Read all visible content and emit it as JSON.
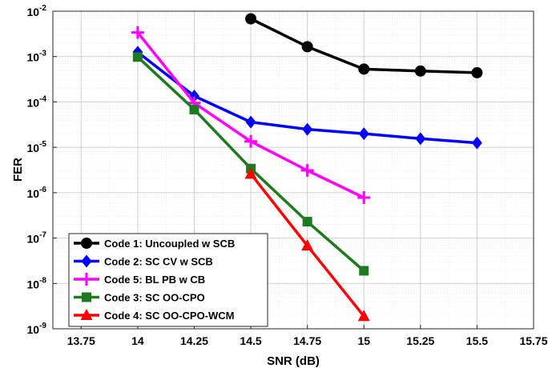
{
  "chart_data": {
    "type": "line",
    "xlabel": "SNR (dB)",
    "ylabel": "FER",
    "xlim": [
      13.625,
      15.75
    ],
    "ylim_exponent": [
      -9,
      -2
    ],
    "yscale": "log",
    "grid": true,
    "minor_grid": true,
    "legend_position": "bottom-left",
    "x_ticks": [
      13.75,
      14,
      14.25,
      14.5,
      14.75,
      15,
      15.25,
      15.5,
      15.75
    ],
    "x_tick_labels": [
      "13.75",
      "14",
      "14.25",
      "14.5",
      "14.75",
      "15",
      "15.25",
      "15.5",
      "15.75"
    ],
    "y_ticks": [
      -9,
      -8,
      -7,
      -6,
      -5,
      -4,
      -3,
      -2
    ],
    "y_tick_base": "10",
    "y_tick_exponents": [
      "-9",
      "-8",
      "-7",
      "-6",
      "-5",
      "-4",
      "-3",
      "-2"
    ],
    "series": [
      {
        "name": "Code 1: Uncoupled w SCB",
        "color": "#000000",
        "marker": "circle",
        "x": [
          14.5,
          14.75,
          15,
          15.25,
          15.5
        ],
        "y": [
          0.0068,
          0.00165,
          0.00053,
          0.00048,
          0.00044
        ]
      },
      {
        "name": "Code 2: SC CV w SCB",
        "color": "#0000ff",
        "marker": "diamond",
        "x": [
          14,
          14.25,
          14.5,
          14.75,
          15,
          15.25,
          15.5
        ],
        "y": [
          0.00125,
          0.000135,
          3.6e-05,
          2.5e-05,
          2e-05,
          1.55e-05,
          1.25e-05
        ]
      },
      {
        "name": "Code 5: BL PB w CB",
        "color": "#ff00ff",
        "marker": "plus",
        "x": [
          14,
          14.25,
          14.5,
          14.75,
          15
        ],
        "y": [
          0.0034,
          9.5e-05,
          1.35e-05,
          3.1e-06,
          7.8e-07
        ]
      },
      {
        "name": "Code 3: SC OO-CPO",
        "color": "#1f7a1f",
        "marker": "square",
        "x": [
          14,
          14.25,
          14.5,
          14.75,
          15
        ],
        "y": [
          0.00098,
          6.8e-05,
          3.4e-06,
          2.3e-07,
          1.9e-08
        ]
      },
      {
        "name": "Code 4: SC OO-CPO-WCM",
        "color": "#ff0000",
        "marker": "triangle",
        "x": [
          14.5,
          14.75,
          15
        ],
        "y": [
          2.6e-06,
          6.8e-08,
          1.9e-09
        ]
      }
    ]
  }
}
